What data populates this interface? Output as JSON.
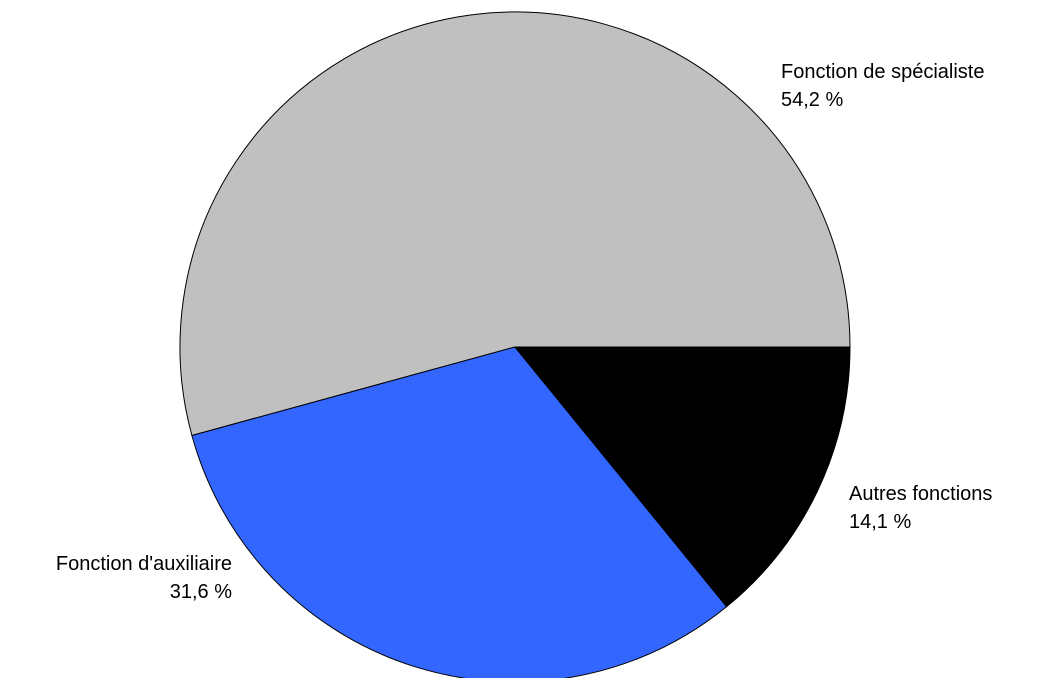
{
  "chart_data": {
    "type": "pie",
    "title": "",
    "slices": [
      {
        "label": "Fonction de spécialiste",
        "value": 54.2,
        "value_label": "54,2 %",
        "color": "#c0c0c0"
      },
      {
        "label": "Fonction d'auxiliaire",
        "value": 31.6,
        "value_label": "31,6 %",
        "color": "#3366ff"
      },
      {
        "label": "Autres fonctions",
        "value": 14.1,
        "value_label": "14,1 %",
        "color": "#000000"
      }
    ],
    "start": "3 o'clock",
    "direction": "counterclockwise",
    "legend": "none",
    "labels": "outside"
  }
}
